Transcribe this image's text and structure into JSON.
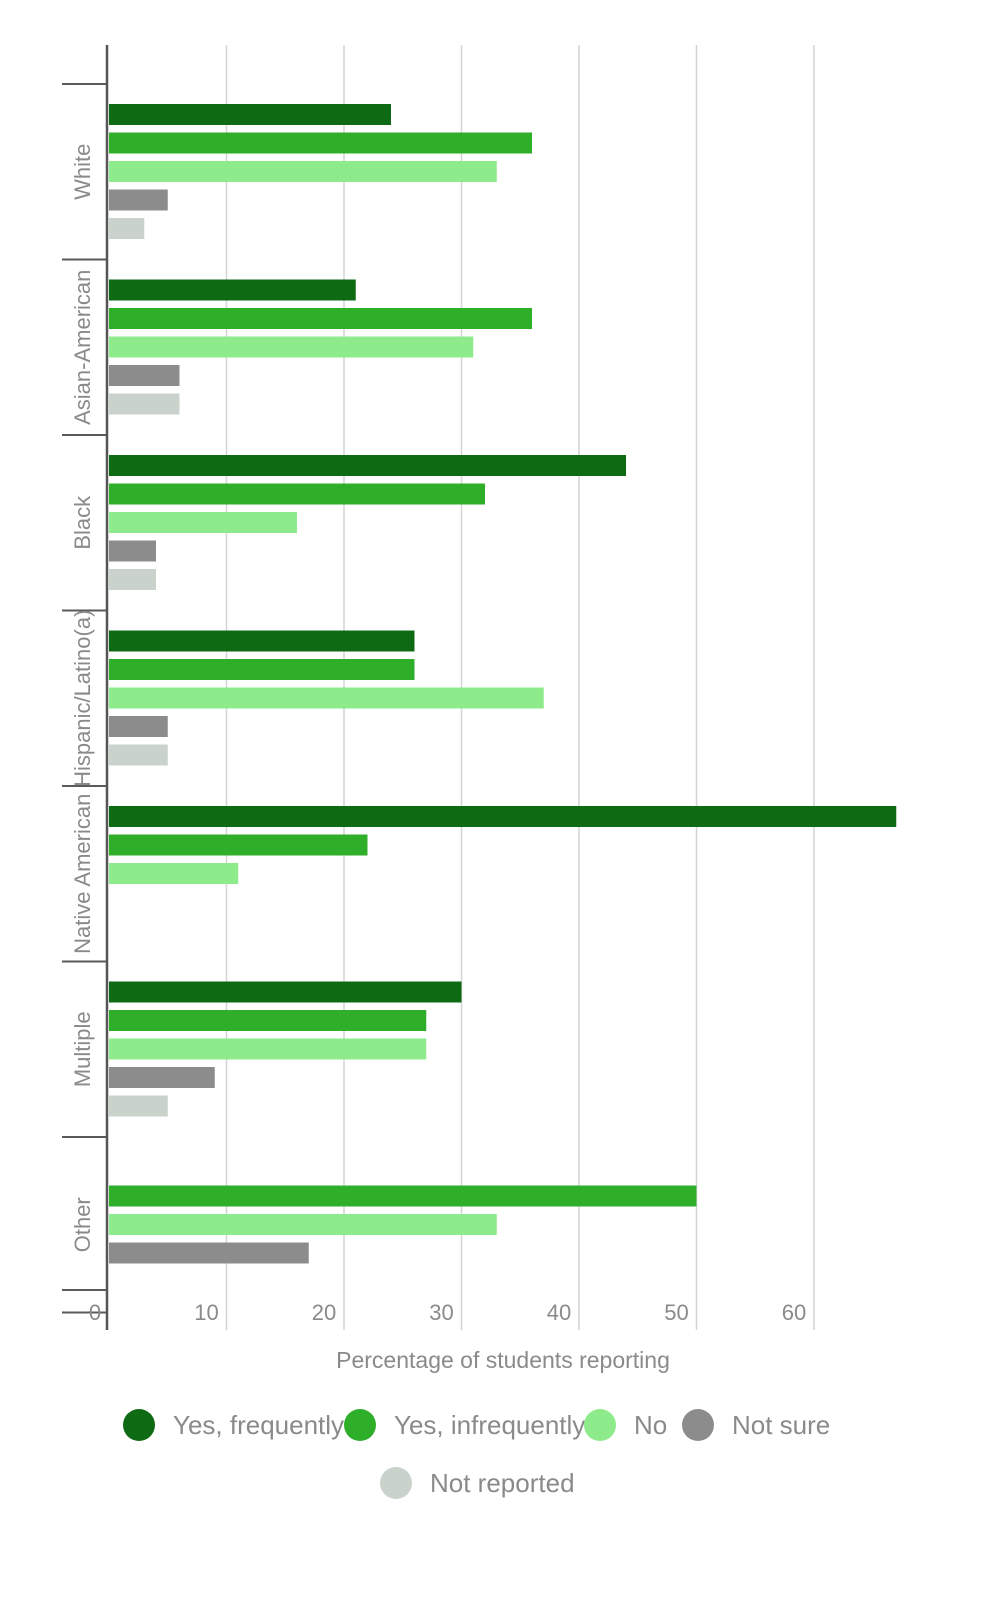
{
  "chart_data": {
    "type": "bar",
    "orientation": "horizontal",
    "xlabel": "Percentage of students reporting",
    "xlim": [
      0,
      70
    ],
    "xticks": [
      0,
      10,
      20,
      30,
      40,
      50,
      60
    ],
    "grid": true,
    "legend_position": "bottom",
    "categories": [
      "White",
      "Asian-American",
      "Black",
      "Hispanic/Latino(a)",
      "Native American",
      "Multiple",
      "Other"
    ],
    "series": [
      {
        "name": "Yes, frequently",
        "color": "#0f6a14",
        "values": [
          24,
          21,
          44,
          26,
          67,
          30,
          null
        ]
      },
      {
        "name": "Yes, infrequently",
        "color": "#2fae2a",
        "values": [
          36,
          36,
          32,
          26,
          22,
          27,
          50
        ]
      },
      {
        "name": "No",
        "color": "#8deb8c",
        "values": [
          33,
          31,
          16,
          37,
          11,
          27,
          33
        ]
      },
      {
        "name": "Not sure",
        "color": "#8c8c8c",
        "values": [
          5,
          6,
          4,
          5,
          null,
          9,
          17
        ]
      },
      {
        "name": "Not reported",
        "color": "#c9d3cb",
        "values": [
          3,
          6,
          4,
          5,
          null,
          5,
          null
        ]
      }
    ]
  }
}
